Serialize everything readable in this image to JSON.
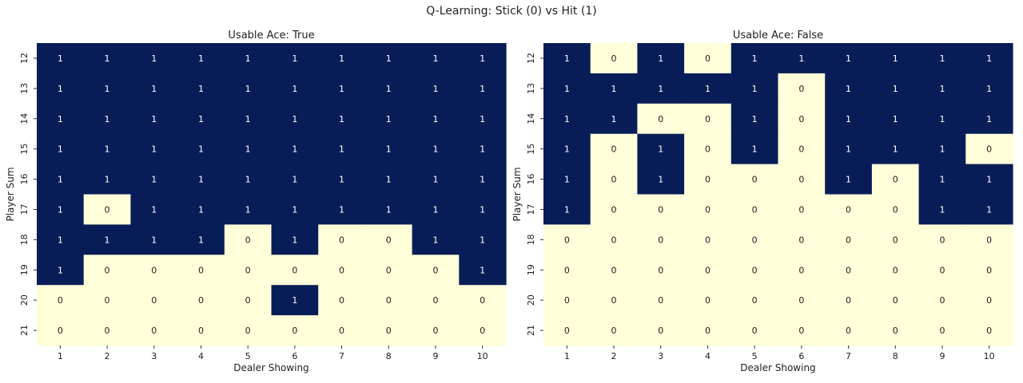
{
  "suptitle": "Q-Learning: Stick (0) vs Hit (1)",
  "colors": {
    "hit": "#081d58",
    "stick": "#ffffd9",
    "text_on_hit": "#ffffff",
    "text_on_stick": "#222222"
  },
  "chart_data": [
    {
      "type": "heatmap",
      "title": "Usable Ace: True",
      "xlabel": "Dealer Showing",
      "ylabel": "Player Sum",
      "x": [
        1,
        2,
        3,
        4,
        5,
        6,
        7,
        8,
        9,
        10
      ],
      "y": [
        12,
        13,
        14,
        15,
        16,
        17,
        18,
        19,
        20,
        21
      ],
      "values": [
        [
          1,
          1,
          1,
          1,
          1,
          1,
          1,
          1,
          1,
          1
        ],
        [
          1,
          1,
          1,
          1,
          1,
          1,
          1,
          1,
          1,
          1
        ],
        [
          1,
          1,
          1,
          1,
          1,
          1,
          1,
          1,
          1,
          1
        ],
        [
          1,
          1,
          1,
          1,
          1,
          1,
          1,
          1,
          1,
          1
        ],
        [
          1,
          1,
          1,
          1,
          1,
          1,
          1,
          1,
          1,
          1
        ],
        [
          1,
          0,
          1,
          1,
          1,
          1,
          1,
          1,
          1,
          1
        ],
        [
          1,
          1,
          1,
          1,
          0,
          1,
          0,
          0,
          1,
          1
        ],
        [
          1,
          0,
          0,
          0,
          0,
          0,
          0,
          0,
          0,
          1
        ],
        [
          0,
          0,
          0,
          0,
          0,
          1,
          0,
          0,
          0,
          0
        ],
        [
          0,
          0,
          0,
          0,
          0,
          0,
          0,
          0,
          0,
          0
        ]
      ]
    },
    {
      "type": "heatmap",
      "title": "Usable Ace: False",
      "xlabel": "Dealer Showing",
      "ylabel": "Player Sum",
      "x": [
        1,
        2,
        3,
        4,
        5,
        6,
        7,
        8,
        9,
        10
      ],
      "y": [
        12,
        13,
        14,
        15,
        16,
        17,
        18,
        19,
        20,
        21
      ],
      "values": [
        [
          1,
          0,
          1,
          0,
          1,
          1,
          1,
          1,
          1,
          1
        ],
        [
          1,
          1,
          1,
          1,
          1,
          0,
          1,
          1,
          1,
          1
        ],
        [
          1,
          1,
          0,
          0,
          1,
          0,
          1,
          1,
          1,
          1
        ],
        [
          1,
          0,
          1,
          0,
          1,
          0,
          1,
          1,
          1,
          0
        ],
        [
          1,
          0,
          1,
          0,
          0,
          0,
          1,
          0,
          1,
          1
        ],
        [
          1,
          0,
          0,
          0,
          0,
          0,
          0,
          0,
          1,
          1
        ],
        [
          0,
          0,
          0,
          0,
          0,
          0,
          0,
          0,
          0,
          0
        ],
        [
          0,
          0,
          0,
          0,
          0,
          0,
          0,
          0,
          0,
          0
        ],
        [
          0,
          0,
          0,
          0,
          0,
          0,
          0,
          0,
          0,
          0
        ],
        [
          0,
          0,
          0,
          0,
          0,
          0,
          0,
          0,
          0,
          0
        ]
      ]
    }
  ]
}
